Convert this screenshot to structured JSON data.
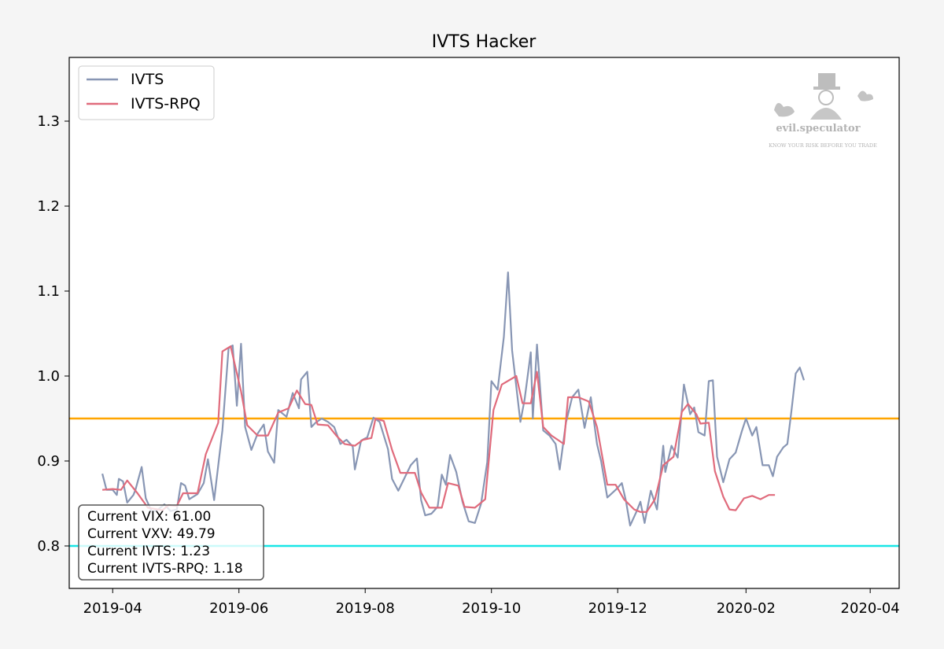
{
  "chart_data": {
    "type": "line",
    "title": "IVTS Hacker",
    "xlabel": "",
    "ylabel": "",
    "xlim": [
      "2019-03-11",
      "2020-04-15"
    ],
    "ylim": [
      0.75,
      1.375
    ],
    "grid": false,
    "legend_position": "top-left",
    "x_ticks": [
      "2019-04",
      "2019-06",
      "2019-08",
      "2019-10",
      "2019-12",
      "2020-02",
      "2020-04"
    ],
    "y_ticks": [
      "0.8",
      "0.9",
      "1.0",
      "1.1",
      "1.2",
      "1.3"
    ],
    "y_tick_values": [
      0.8,
      0.9,
      1.0,
      1.1,
      1.2,
      1.3
    ],
    "hlines": [
      {
        "y": 0.95,
        "color": "#ffa500"
      },
      {
        "y": 0.8,
        "color": "#19e6e6"
      }
    ],
    "series": [
      {
        "name": "IVTS",
        "color": "#8896b4",
        "points": [
          [
            "2019-03-27",
            0.885
          ],
          [
            "2019-03-29",
            0.866
          ],
          [
            "2019-04-01",
            0.866
          ],
          [
            "2019-04-03",
            0.86
          ],
          [
            "2019-04-04",
            0.879
          ],
          [
            "2019-04-06",
            0.876
          ],
          [
            "2019-04-08",
            0.851
          ],
          [
            "2019-04-11",
            0.86
          ],
          [
            "2019-04-12",
            0.866
          ],
          [
            "2019-04-15",
            0.893
          ],
          [
            "2019-04-17",
            0.856
          ],
          [
            "2019-04-20",
            0.84
          ],
          [
            "2019-04-23",
            0.843
          ],
          [
            "2019-04-26",
            0.849
          ],
          [
            "2019-04-29",
            0.841
          ],
          [
            "2019-05-02",
            0.843
          ],
          [
            "2019-05-04",
            0.874
          ],
          [
            "2019-05-06",
            0.871
          ],
          [
            "2019-05-08",
            0.855
          ],
          [
            "2019-05-12",
            0.861
          ],
          [
            "2019-05-15",
            0.874
          ],
          [
            "2019-05-17",
            0.902
          ],
          [
            "2019-05-20",
            0.854
          ],
          [
            "2019-05-24",
            0.936
          ],
          [
            "2019-05-27",
            1.033
          ],
          [
            "2019-05-29",
            1.036
          ],
          [
            "2019-05-31",
            0.965
          ],
          [
            "2019-06-02",
            1.038
          ],
          [
            "2019-06-04",
            0.94
          ],
          [
            "2019-06-07",
            0.913
          ],
          [
            "2019-06-10",
            0.932
          ],
          [
            "2019-06-13",
            0.943
          ],
          [
            "2019-06-15",
            0.911
          ],
          [
            "2019-06-18",
            0.898
          ],
          [
            "2019-06-20",
            0.96
          ],
          [
            "2019-06-24",
            0.952
          ],
          [
            "2019-06-27",
            0.98
          ],
          [
            "2019-06-30",
            0.962
          ],
          [
            "2019-07-01",
            0.996
          ],
          [
            "2019-07-04",
            1.005
          ],
          [
            "2019-07-06",
            0.94
          ],
          [
            "2019-07-08",
            0.945
          ],
          [
            "2019-07-11",
            0.95
          ],
          [
            "2019-07-14",
            0.946
          ],
          [
            "2019-07-17",
            0.94
          ],
          [
            "2019-07-20",
            0.92
          ],
          [
            "2019-07-23",
            0.925
          ],
          [
            "2019-07-26",
            0.917
          ],
          [
            "2019-07-27",
            0.89
          ],
          [
            "2019-07-30",
            0.924
          ],
          [
            "2019-08-02",
            0.928
          ],
          [
            "2019-08-05",
            0.951
          ],
          [
            "2019-08-08",
            0.946
          ],
          [
            "2019-08-12",
            0.914
          ],
          [
            "2019-08-14",
            0.879
          ],
          [
            "2019-08-17",
            0.865
          ],
          [
            "2019-08-20",
            0.88
          ],
          [
            "2019-08-23",
            0.895
          ],
          [
            "2019-08-26",
            0.903
          ],
          [
            "2019-08-28",
            0.854
          ],
          [
            "2019-08-30",
            0.836
          ],
          [
            "2019-09-02",
            0.838
          ],
          [
            "2019-09-05",
            0.846
          ],
          [
            "2019-09-07",
            0.884
          ],
          [
            "2019-09-09",
            0.872
          ],
          [
            "2019-09-11",
            0.907
          ],
          [
            "2019-09-14",
            0.887
          ],
          [
            "2019-09-17",
            0.852
          ],
          [
            "2019-09-20",
            0.829
          ],
          [
            "2019-09-23",
            0.827
          ],
          [
            "2019-09-26",
            0.85
          ],
          [
            "2019-09-29",
            0.899
          ],
          [
            "2019-10-01",
            0.994
          ],
          [
            "2019-10-04",
            0.984
          ],
          [
            "2019-10-07",
            1.046
          ],
          [
            "2019-10-09",
            1.122
          ],
          [
            "2019-10-11",
            1.03
          ],
          [
            "2019-10-15",
            0.946
          ],
          [
            "2019-10-17",
            0.972
          ],
          [
            "2019-10-20",
            1.028
          ],
          [
            "2019-10-21",
            0.95
          ],
          [
            "2019-10-23",
            1.037
          ],
          [
            "2019-10-26",
            0.936
          ],
          [
            "2019-10-29",
            0.93
          ],
          [
            "2019-11-01",
            0.92
          ],
          [
            "2019-11-03",
            0.89
          ],
          [
            "2019-11-06",
            0.945
          ],
          [
            "2019-11-09",
            0.975
          ],
          [
            "2019-11-12",
            0.984
          ],
          [
            "2019-11-15",
            0.939
          ],
          [
            "2019-11-18",
            0.975
          ],
          [
            "2019-11-21",
            0.92
          ],
          [
            "2019-11-23",
            0.9
          ],
          [
            "2019-11-26",
            0.857
          ],
          [
            "2019-11-30",
            0.866
          ],
          [
            "2019-12-03",
            0.874
          ],
          [
            "2019-12-05",
            0.853
          ],
          [
            "2019-12-07",
            0.824
          ],
          [
            "2019-12-10",
            0.84
          ],
          [
            "2019-12-12",
            0.852
          ],
          [
            "2019-12-14",
            0.827
          ],
          [
            "2019-12-17",
            0.865
          ],
          [
            "2019-12-20",
            0.843
          ],
          [
            "2019-12-23",
            0.918
          ],
          [
            "2019-12-24",
            0.887
          ],
          [
            "2019-12-27",
            0.918
          ],
          [
            "2019-12-30",
            0.904
          ],
          [
            "2020-01-02",
            0.99
          ],
          [
            "2020-01-05",
            0.955
          ],
          [
            "2020-01-07",
            0.963
          ],
          [
            "2020-01-09",
            0.934
          ],
          [
            "2020-01-12",
            0.93
          ],
          [
            "2020-01-14",
            0.994
          ],
          [
            "2020-01-16",
            0.995
          ],
          [
            "2020-01-18",
            0.905
          ],
          [
            "2020-01-21",
            0.875
          ],
          [
            "2020-01-24",
            0.902
          ],
          [
            "2020-01-27",
            0.91
          ],
          [
            "2020-01-30",
            0.935
          ],
          [
            "2020-02-01",
            0.95
          ],
          [
            "2020-02-04",
            0.93
          ],
          [
            "2020-02-06",
            0.94
          ],
          [
            "2020-02-09",
            0.895
          ],
          [
            "2020-02-12",
            0.895
          ],
          [
            "2020-02-14",
            0.882
          ],
          [
            "2020-02-16",
            0.905
          ],
          [
            "2020-02-19",
            0.916
          ],
          [
            "2020-02-21",
            0.92
          ],
          [
            "2020-02-23",
            0.96
          ],
          [
            "2020-02-25",
            1.003
          ],
          [
            "2020-02-27",
            1.01
          ],
          [
            "2020-02-29",
            0.995
          ]
        ]
      },
      {
        "name": "IVTS-RPQ",
        "color": "#e06b7c",
        "points": [
          [
            "2019-03-27",
            0.866
          ],
          [
            "2019-04-01",
            0.867
          ],
          [
            "2019-04-05",
            0.866
          ],
          [
            "2019-04-08",
            0.877
          ],
          [
            "2019-04-13",
            0.862
          ],
          [
            "2019-04-18",
            0.845
          ],
          [
            "2019-04-25",
            0.842
          ],
          [
            "2019-04-28",
            0.848
          ],
          [
            "2019-05-02",
            0.847
          ],
          [
            "2019-05-05",
            0.862
          ],
          [
            "2019-05-12",
            0.862
          ],
          [
            "2019-05-16",
            0.908
          ],
          [
            "2019-05-22",
            0.945
          ],
          [
            "2019-05-24",
            1.029
          ],
          [
            "2019-05-28",
            1.035
          ],
          [
            "2019-06-02",
            0.982
          ],
          [
            "2019-06-05",
            0.942
          ],
          [
            "2019-06-10",
            0.93
          ],
          [
            "2019-06-15",
            0.93
          ],
          [
            "2019-06-20",
            0.957
          ],
          [
            "2019-06-25",
            0.962
          ],
          [
            "2019-06-29",
            0.983
          ],
          [
            "2019-07-03",
            0.967
          ],
          [
            "2019-07-06",
            0.966
          ],
          [
            "2019-07-09",
            0.943
          ],
          [
            "2019-07-14",
            0.942
          ],
          [
            "2019-07-18",
            0.93
          ],
          [
            "2019-07-22",
            0.92
          ],
          [
            "2019-07-27",
            0.918
          ],
          [
            "2019-07-31",
            0.925
          ],
          [
            "2019-08-04",
            0.927
          ],
          [
            "2019-08-06",
            0.95
          ],
          [
            "2019-08-10",
            0.947
          ],
          [
            "2019-08-14",
            0.913
          ],
          [
            "2019-08-18",
            0.886
          ],
          [
            "2019-08-25",
            0.886
          ],
          [
            "2019-08-28",
            0.863
          ],
          [
            "2019-09-01",
            0.845
          ],
          [
            "2019-09-07",
            0.845
          ],
          [
            "2019-09-10",
            0.874
          ],
          [
            "2019-09-15",
            0.871
          ],
          [
            "2019-09-18",
            0.846
          ],
          [
            "2019-09-23",
            0.845
          ],
          [
            "2019-09-28",
            0.855
          ],
          [
            "2019-10-02",
            0.96
          ],
          [
            "2019-10-06",
            0.99
          ],
          [
            "2019-10-13",
            1.0
          ],
          [
            "2019-10-16",
            0.968
          ],
          [
            "2019-10-20",
            0.968
          ],
          [
            "2019-10-23",
            1.005
          ],
          [
            "2019-10-26",
            0.94
          ],
          [
            "2019-10-30",
            0.93
          ],
          [
            "2019-11-05",
            0.92
          ],
          [
            "2019-11-07",
            0.975
          ],
          [
            "2019-11-12",
            0.975
          ],
          [
            "2019-11-17",
            0.97
          ],
          [
            "2019-11-21",
            0.94
          ],
          [
            "2019-11-26",
            0.872
          ],
          [
            "2019-11-30",
            0.872
          ],
          [
            "2019-12-04",
            0.855
          ],
          [
            "2019-12-09",
            0.843
          ],
          [
            "2019-12-12",
            0.84
          ],
          [
            "2019-12-15",
            0.84
          ],
          [
            "2019-12-19",
            0.855
          ],
          [
            "2019-12-23",
            0.895
          ],
          [
            "2019-12-28",
            0.905
          ],
          [
            "2020-01-01",
            0.958
          ],
          [
            "2020-01-04",
            0.967
          ],
          [
            "2020-01-08",
            0.955
          ],
          [
            "2020-01-10",
            0.944
          ],
          [
            "2020-01-14",
            0.945
          ],
          [
            "2020-01-17",
            0.888
          ],
          [
            "2020-01-21",
            0.858
          ],
          [
            "2020-01-24",
            0.843
          ],
          [
            "2020-01-27",
            0.842
          ],
          [
            "2020-01-31",
            0.856
          ],
          [
            "2020-02-04",
            0.859
          ],
          [
            "2020-02-08",
            0.855
          ],
          [
            "2020-02-12",
            0.86
          ],
          [
            "2020-02-15",
            0.86
          ]
        ]
      }
    ]
  },
  "legend": {
    "items": [
      {
        "label": "IVTS",
        "color": "#8896b4"
      },
      {
        "label": "IVTS-RPQ",
        "color": "#e06b7c"
      }
    ]
  },
  "info_box": {
    "lines": [
      "Current VIX: 61.00",
      "Current VXV: 49.79",
      "Current IVTS: 1.23",
      "Current IVTS-RPQ: 1.18"
    ]
  },
  "watermark": {
    "name": "evil.speculator",
    "tagline": "KNOW YOUR RISK BEFORE YOU TRADE"
  }
}
